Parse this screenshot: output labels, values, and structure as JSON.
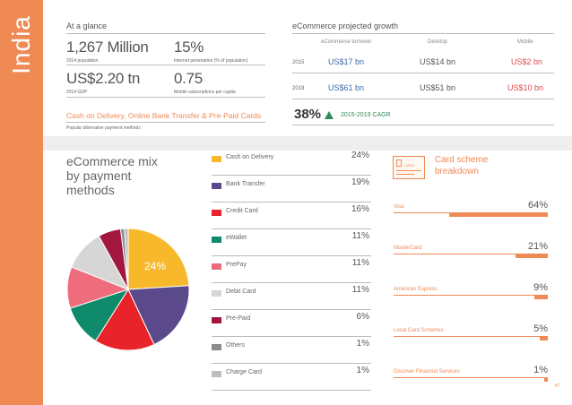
{
  "side_title": "India",
  "at_a_glance": {
    "heading": "At a glance",
    "stats": [
      {
        "value": "1,267 Million",
        "label": "2014 population"
      },
      {
        "value": "15%",
        "label": "Internet penetration (% of population)"
      },
      {
        "value": "US$2.20 tn",
        "label": "2014 GDP"
      },
      {
        "value": "0.75",
        "label": "Mobile subscriptions per capita"
      }
    ],
    "payments_text": "Cash on Delivery, Online Bank Transfer & Pre-Paid Cards",
    "payments_caption": "Popular alternative payment methods"
  },
  "growth": {
    "heading": "eCommerce projected growth",
    "columns": [
      "eCommerce turnover",
      "Desktop",
      "Mobile"
    ],
    "rows": [
      {
        "year": "2015",
        "turnover": "US$17 bn",
        "desktop": "US$14 bn",
        "mobile": "US$2 bn"
      },
      {
        "year": "2019",
        "turnover": "US$61 bn",
        "desktop": "US$51 bn",
        "mobile": "US$10 bn"
      }
    ],
    "cagr_value": "38%",
    "cagr_label": "2015-2019 CAGR"
  },
  "payment_mix": {
    "title": "eCommerce mix by payment methods",
    "highlight_label": "24%"
  },
  "chart_data": {
    "type": "pie",
    "title": "eCommerce mix by payment methods",
    "categories": [
      "Cash on Delivery",
      "Bank Transfer",
      "Credit Card",
      "eWallet",
      "PrePay",
      "Debit Card",
      "Pre-Paid",
      "Others",
      "Charge Card"
    ],
    "values": [
      24,
      19,
      16,
      11,
      11,
      11,
      6,
      1,
      1
    ],
    "value_labels": [
      "24%",
      "19%",
      "16%",
      "11%",
      "11%",
      "11%",
      "6%",
      "1%",
      "1%"
    ],
    "colors": [
      "#f7b92b",
      "#5b4a8b",
      "#e8232a",
      "#0f8a6a",
      "#ee6c7c",
      "#d6d6d6",
      "#a3173f",
      "#8b8b8b",
      "#bdbdbd"
    ]
  },
  "card_scheme": {
    "title": "Card scheme breakdown",
    "icon_text": "CARD",
    "items": [
      {
        "label": "Visa",
        "pct": "64%",
        "value": 64
      },
      {
        "label": "MasterCard",
        "pct": "21%",
        "value": 21
      },
      {
        "label": "American Express",
        "pct": "9%",
        "value": 9
      },
      {
        "label": "Local Card Schemes",
        "pct": "5%",
        "value": 5
      },
      {
        "label": "Discover Financial Services",
        "pct": "1%",
        "value": 1
      }
    ]
  },
  "page_number": "47",
  "accent": "#f08a55"
}
